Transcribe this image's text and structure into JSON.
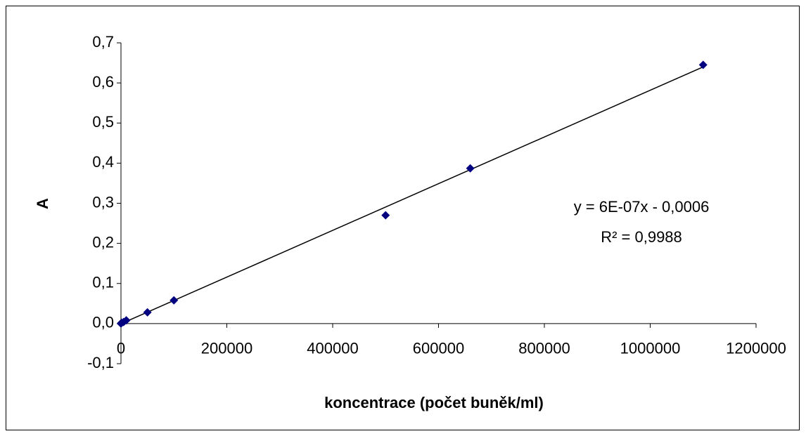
{
  "chart_data": {
    "type": "scatter",
    "x_label": "koncentrace (počet buněk/ml)",
    "y_label": "A",
    "x": [
      0,
      1000,
      5000,
      10000,
      50000,
      100000,
      500000,
      660000,
      1100000
    ],
    "series": [
      {
        "name": "A",
        "color": "#000080",
        "values": [
          0,
          0.002,
          0.004,
          0.008,
          0.028,
          0.058,
          0.27,
          0.387,
          0.645
        ]
      }
    ],
    "trendline": {
      "x": [
        0,
        1100000
      ],
      "y": [
        -0.0006,
        0.64
      ],
      "color": "#000000"
    },
    "annotations": [
      "y = 6E-07x - 0,0006",
      "R² = 0,9988"
    ],
    "xlim": [
      0,
      1200000
    ],
    "xticks": [
      0,
      200000,
      400000,
      600000,
      800000,
      1000000,
      1200000
    ],
    "ylim": [
      -0.1,
      0.7
    ],
    "yticks": [
      {
        "value": -0.1,
        "label": "-0,1"
      },
      {
        "value": 0,
        "label": "0,0"
      },
      {
        "value": 0.1,
        "label": "0,1"
      },
      {
        "value": 0.2,
        "label": "0,2"
      },
      {
        "value": 0.3,
        "label": "0,3"
      },
      {
        "value": 0.4,
        "label": "0,4"
      },
      {
        "value": 0.5,
        "label": "0,5"
      },
      {
        "value": 0.6,
        "label": "0,6"
      },
      {
        "value": 0.7,
        "label": "0,7"
      }
    ],
    "grid": false
  }
}
